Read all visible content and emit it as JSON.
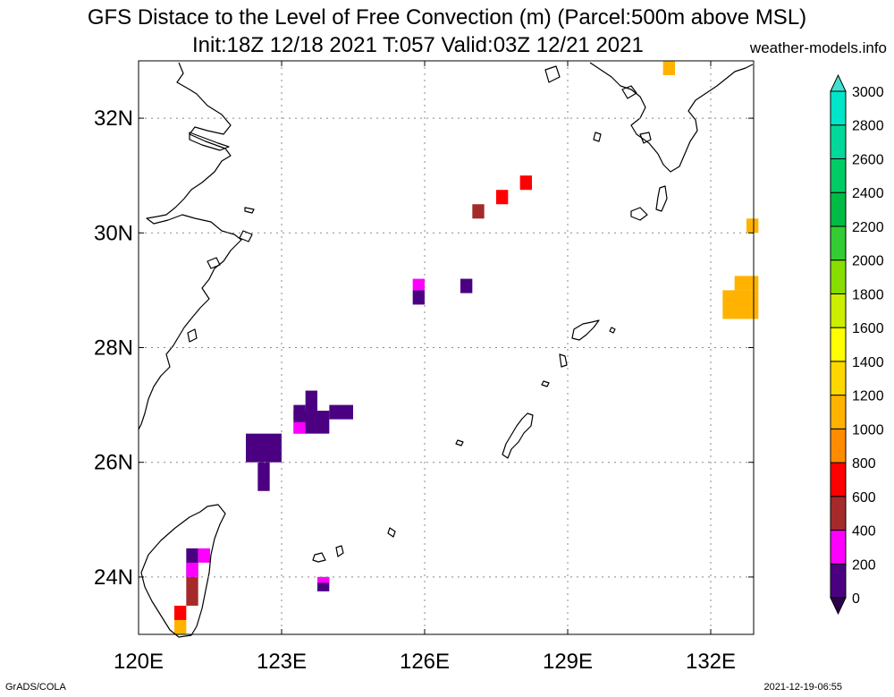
{
  "title": {
    "line1": "GFS Distace to the Level of Free Convection (m) (Parcel:500m above MSL)",
    "line2": "Init:18Z 12/18 2021 T:057 Valid:03Z 12/21 2021",
    "site": "weather-models.info"
  },
  "footer": {
    "credit": "GrADS/COLA",
    "timestamp": "2021-12-19-06:55"
  },
  "map": {
    "lon_range": [
      120,
      132.9
    ],
    "lat_range": [
      23.0,
      33.0
    ],
    "lat_ticks": [
      {
        "v": 24,
        "label": "24N"
      },
      {
        "v": 26,
        "label": "26N"
      },
      {
        "v": 28,
        "label": "28N"
      },
      {
        "v": 30,
        "label": "30N"
      },
      {
        "v": 32,
        "label": "32N"
      }
    ],
    "lon_ticks": [
      {
        "v": 120,
        "label": "120E"
      },
      {
        "v": 123,
        "label": "123E"
      },
      {
        "v": 126,
        "label": "126E"
      },
      {
        "v": 129,
        "label": "129E"
      },
      {
        "v": 132,
        "label": "132E"
      }
    ],
    "grid": true
  },
  "colorbar": {
    "labels": [
      "0",
      "200",
      "400",
      "600",
      "800",
      "1000",
      "1200",
      "1400",
      "1600",
      "1800",
      "2000",
      "2200",
      "2400",
      "2600",
      "2800",
      "3000"
    ],
    "colors": [
      "#4b0082",
      "#ff00ff",
      "#a52a2a",
      "#ff0000",
      "#ff8c00",
      "#ffb300",
      "#ffd700",
      "#ffff00",
      "#ccee00",
      "#88dd00",
      "#33cc33",
      "#00bb44",
      "#00cc66",
      "#00d99a",
      "#00e6c8",
      "#00ffff"
    ],
    "under_color": "#2d0050",
    "over_color": "#40e0d0"
  },
  "cells": [
    {
      "lon": [
        122.25,
        123.0
      ],
      "lat": [
        26.0,
        26.5
      ],
      "c": "#4b0082"
    },
    {
      "lon": [
        122.5,
        122.75
      ],
      "lat": [
        25.5,
        26.0
      ],
      "c": "#4b0082"
    },
    {
      "lon": [
        123.25,
        124.0
      ],
      "lat": [
        26.5,
        26.9
      ],
      "c": "#4b0082"
    },
    {
      "lon": [
        123.25,
        123.5
      ],
      "lat": [
        26.5,
        26.7
      ],
      "c": "#ff00ff"
    },
    {
      "lon": [
        124.0,
        124.5
      ],
      "lat": [
        26.75,
        27.0
      ],
      "c": "#4b0082"
    },
    {
      "lon": [
        123.5,
        123.75
      ],
      "lat": [
        26.9,
        27.25
      ],
      "c": "#4b0082"
    },
    {
      "lon": [
        123.25,
        123.5
      ],
      "lat": [
        26.75,
        27.0
      ],
      "c": "#4b0082"
    },
    {
      "lon": [
        125.75,
        126.0
      ],
      "lat": [
        28.75,
        29.0
      ],
      "c": "#4b0082"
    },
    {
      "lon": [
        125.75,
        126.0
      ],
      "lat": [
        29.0,
        29.2
      ],
      "c": "#ff00ff"
    },
    {
      "lon": [
        126.75,
        127.0
      ],
      "lat": [
        28.95,
        29.2
      ],
      "c": "#4b0082"
    },
    {
      "lon": [
        127.0,
        127.25
      ],
      "lat": [
        30.25,
        30.5
      ],
      "c": "#a52a2a"
    },
    {
      "lon": [
        127.5,
        127.75
      ],
      "lat": [
        30.5,
        30.75
      ],
      "c": "#ff0000"
    },
    {
      "lon": [
        128.0,
        128.25
      ],
      "lat": [
        30.75,
        31.0
      ],
      "c": "#ff0000"
    },
    {
      "lon": [
        131.0,
        131.25
      ],
      "lat": [
        32.75,
        33.0
      ],
      "c": "#ffb300"
    },
    {
      "lon": [
        132.75,
        133.0
      ],
      "lat": [
        30.0,
        30.25
      ],
      "c": "#ffb300"
    },
    {
      "lon": [
        132.25,
        133.0
      ],
      "lat": [
        28.5,
        29.0
      ],
      "c": "#ffb300"
    },
    {
      "lon": [
        132.5,
        133.0
      ],
      "lat": [
        29.0,
        29.25
      ],
      "c": "#ffb300"
    },
    {
      "lon": [
        121.0,
        121.25
      ],
      "lat": [
        24.0,
        24.5
      ],
      "c": "#4b0082"
    },
    {
      "lon": [
        121.25,
        121.5
      ],
      "lat": [
        24.25,
        24.5
      ],
      "c": "#ff00ff"
    },
    {
      "lon": [
        121.0,
        121.25
      ],
      "lat": [
        24.0,
        24.25
      ],
      "c": "#ff00ff"
    },
    {
      "lon": [
        121.0,
        121.25
      ],
      "lat": [
        23.5,
        24.0
      ],
      "c": "#a52a2a"
    },
    {
      "lon": [
        120.75,
        121.0
      ],
      "lat": [
        23.25,
        23.5
      ],
      "c": "#ff0000"
    },
    {
      "lon": [
        120.75,
        121.0
      ],
      "lat": [
        23.0,
        23.25
      ],
      "c": "#ffb300"
    },
    {
      "lon": [
        123.75,
        124.0
      ],
      "lat": [
        23.75,
        24.0
      ],
      "c": "#4b0082"
    },
    {
      "lon": [
        123.75,
        124.0
      ],
      "lat": [
        23.9,
        24.0
      ],
      "c": "#ff00ff"
    }
  ]
}
